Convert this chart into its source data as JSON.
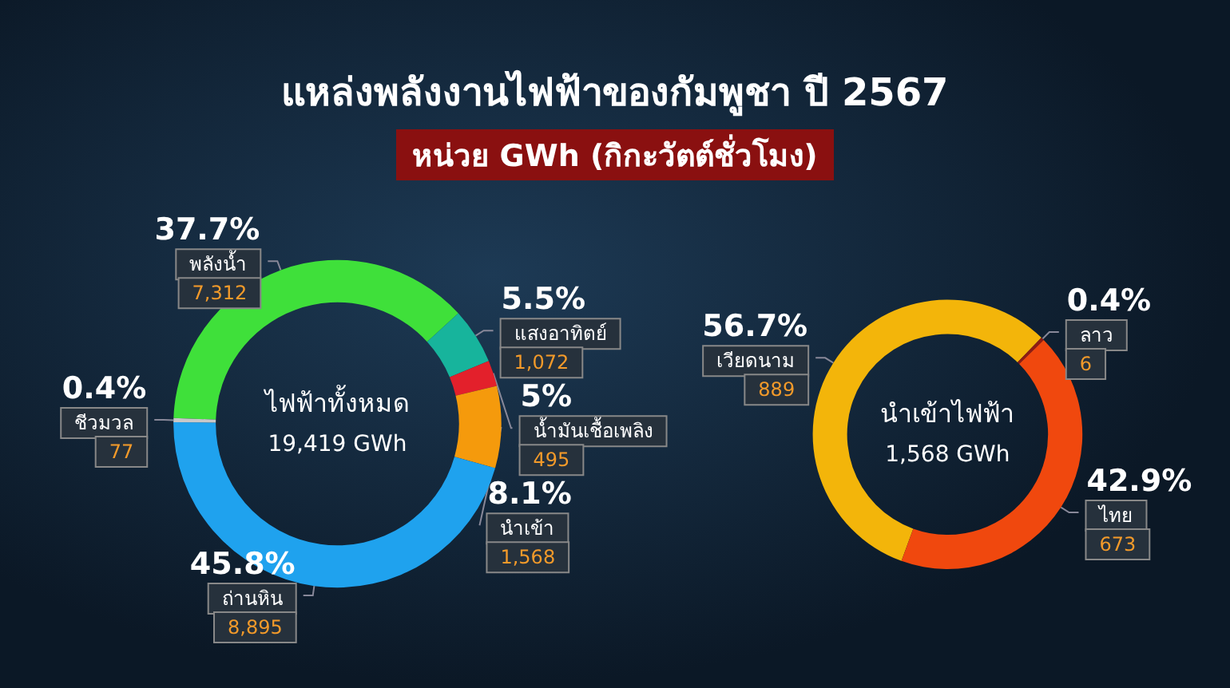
{
  "chart_data": [
    {
      "type": "donut",
      "title": "แหล่งพลังงานไฟฟ้าของกัมพูชา ปี 2567",
      "subtitle": "หน่วย GWh (กิกะวัตต์ชั่วโมง)",
      "categories": [
        "พลังน้ำ",
        "แสงอาทิตย์",
        "น้ำมันเชื้อเพลิง",
        "นำเข้า",
        "ถ่านหิน",
        "ชีวมวล"
      ],
      "values": [
        7312,
        1072,
        495,
        1568,
        8895,
        77
      ],
      "colors": [
        "#3fe03a",
        "#17b49c",
        "#e3202b",
        "#f59a0c",
        "#1fa2ee",
        "#c8c8c8"
      ],
      "value_labels": [
        "7,312",
        "1,072",
        "495",
        "1,568",
        "8,895",
        "77"
      ],
      "annotations": [
        "ไฟฟ้าทั้งหมด",
        "19,419 GWh",
        {
          "text": "37.7%",
          "x": "พลังน้ำ"
        },
        {
          "text": "5.5%",
          "x": "แสงอาทิตย์"
        },
        {
          "text": "5%",
          "x": "น้ำมันเชื้อเพลิง"
        },
        {
          "text": "8.1%",
          "x": "นำเข้า"
        },
        {
          "text": "45.8%",
          "x": "ถ่านหิน"
        },
        {
          "text": "0.4%",
          "x": "ชีวมวล"
        }
      ]
    },
    {
      "type": "donut",
      "categories": [
        "เวียดนาม",
        "ลาว",
        "ไทย"
      ],
      "values": [
        889,
        6,
        673
      ],
      "colors": [
        "#f3b50a",
        "#8e1c14",
        "#f0480e"
      ],
      "value_labels": [
        "889",
        "6",
        "673"
      ],
      "annotations": [
        "นำเข้าไฟฟ้า",
        "1,568 GWh",
        {
          "text": "56.7%",
          "x": "เวียดนาม"
        },
        {
          "text": "0.4%",
          "x": "ลาว"
        },
        {
          "text": "42.9%",
          "x": "ไทย"
        }
      ]
    }
  ]
}
